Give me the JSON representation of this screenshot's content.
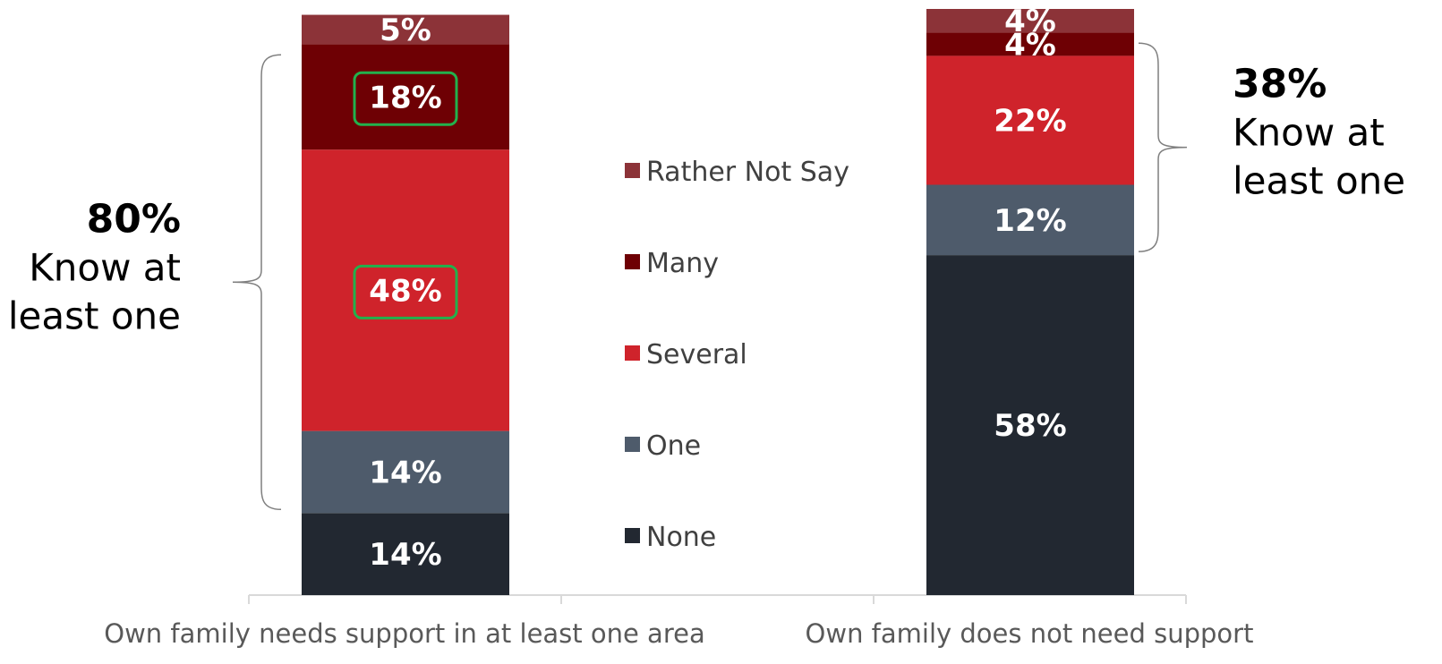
{
  "chart_data": {
    "type": "bar",
    "stacked": true,
    "categories": [
      "Own family needs support in at least one area",
      "Own family does not need support"
    ],
    "series": [
      {
        "name": "None",
        "values": [
          14,
          58
        ],
        "labels": [
          "14%",
          "58%"
        ],
        "color": "#222831"
      },
      {
        "name": "One",
        "values": [
          14,
          12
        ],
        "labels": [
          "14%",
          "12%"
        ],
        "color": "#4e5b6b"
      },
      {
        "name": "Several",
        "values": [
          48,
          22
        ],
        "labels": [
          "48%",
          "22%"
        ],
        "color": "#cf232b"
      },
      {
        "name": "Many",
        "values": [
          18,
          4
        ],
        "labels": [
          "18%",
          "4%"
        ],
        "color": "#6e0004"
      },
      {
        "name": "Rather Not Say",
        "values": [
          5,
          4
        ],
        "labels": [
          "5%",
          "4%"
        ],
        "color": "#8c3338"
      }
    ],
    "highlighted": [
      {
        "category": 0,
        "series": "Many",
        "border_color": "#22b14c"
      },
      {
        "category": 0,
        "series": "Several",
        "border_color": "#22b14c"
      }
    ],
    "legend": {
      "items": [
        "Rather Not Say",
        "Many",
        "Several",
        "One",
        "None"
      ],
      "placement": "center"
    },
    "annotations": [
      {
        "category": 0,
        "pct": "80%",
        "text_lines": [
          "Know at",
          "least one"
        ],
        "side": "left",
        "series_span": [
          "One",
          "Many"
        ]
      },
      {
        "category": 1,
        "pct": "38%",
        "text_lines": [
          "Know at",
          "least one"
        ],
        "side": "right",
        "series_span": [
          "One",
          "Many"
        ]
      }
    ],
    "ylim": [
      0,
      100
    ],
    "grid": false
  }
}
